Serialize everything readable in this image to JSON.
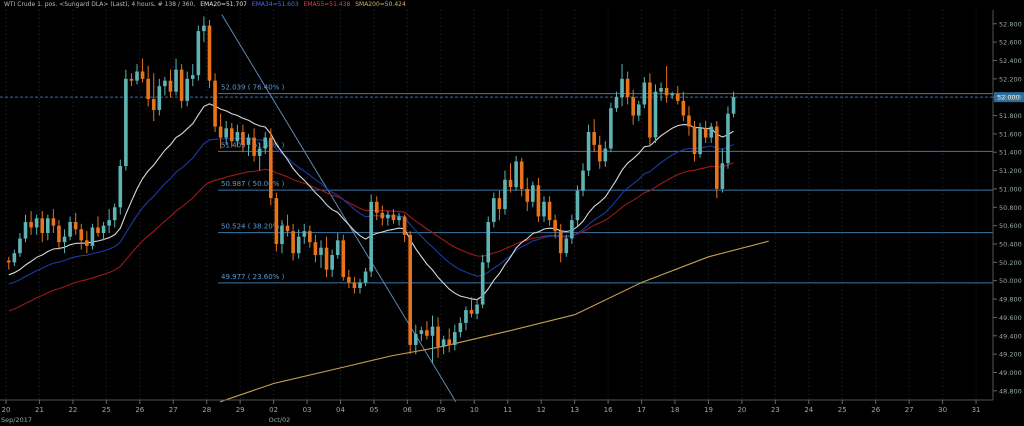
{
  "legend": {
    "symbol": "WTI Crude 1. pos. <Sungard DLA> (Last), 4 hours, # 138 / 360,",
    "ema20": "EMA20=51.707",
    "ema34": "EMA34=51.603",
    "ema55": "EMA55=51.438",
    "sma200": "SMA200=50.424"
  },
  "colors": {
    "background": "#000000",
    "bullish_candle": "#5fb3b3",
    "bearish_candle": "#e8731d",
    "ema20": "#d8d8d8",
    "ema34": "#1a3aa8",
    "ema55": "#a01818",
    "sma200": "#c8a050",
    "fib_line": "#3a78a8",
    "trendline": "#5f88b5",
    "grid": "#222a33",
    "last_price_tag": "#2a6ea0"
  },
  "chart_data": {
    "type": "candlestick",
    "ylim": [
      48.7,
      52.95
    ],
    "yticks": [
      "48.800",
      "49.000",
      "49.200",
      "49.400",
      "49.600",
      "49.800",
      "50.000",
      "50.200",
      "50.400",
      "50.600",
      "50.800",
      "51.000",
      "51.200",
      "51.400",
      "51.600",
      "51.800",
      "52.000",
      "52.200",
      "52.400",
      "52.600",
      "52.800"
    ],
    "ytick_values": [
      48.8,
      49.0,
      49.2,
      49.4,
      49.6,
      49.8,
      50.0,
      50.2,
      50.4,
      50.6,
      50.8,
      51.0,
      51.2,
      51.4,
      51.6,
      51.8,
      52.0,
      52.2,
      52.4,
      52.6,
      52.8
    ],
    "last_price": {
      "label": "52.000",
      "value": 52.0
    },
    "x_labels": [
      "20",
      "21",
      "22",
      "25",
      "26",
      "27",
      "28",
      "29",
      "02",
      "03",
      "04",
      "05",
      "06",
      "09",
      "10",
      "11",
      "12",
      "13",
      "16",
      "17",
      "18",
      "19",
      "20",
      "23",
      "24",
      "25",
      "26",
      "27",
      "30",
      "31"
    ],
    "x_sub_labels": [
      {
        "label": "Sep/2017",
        "day_index": 0
      },
      {
        "label": "Oct/02",
        "day_index": 8
      }
    ],
    "fibonacci_levels": [
      {
        "label": "52.039 ( 76.40% )",
        "value": 52.039
      },
      {
        "label": "51.409 ( 61.80% )",
        "value": 51.409
      },
      {
        "label": "50.987 ( 50.00% )",
        "value": 50.987
      },
      {
        "label": "50.524 ( 38.20% )",
        "value": 50.524
      },
      {
        "label": "49.977 ( 23.60% )",
        "value": 49.977
      }
    ],
    "trendline": {
      "from": {
        "day": 6.45,
        "value": 52.9
      },
      "to": {
        "day": 13.45,
        "value": 48.68
      }
    },
    "candles_per_day": 6,
    "candles": [
      [
        50.22,
        50.26,
        50.12,
        50.2
      ],
      [
        50.2,
        50.34,
        50.16,
        50.3
      ],
      [
        50.3,
        50.52,
        50.26,
        50.46
      ],
      [
        50.46,
        50.72,
        50.42,
        50.64
      ],
      [
        50.64,
        50.76,
        50.5,
        50.58
      ],
      [
        50.58,
        50.72,
        50.5,
        50.68
      ],
      [
        50.68,
        50.76,
        50.42,
        50.52
      ],
      [
        50.52,
        50.72,
        50.44,
        50.68
      ],
      [
        50.68,
        50.78,
        50.52,
        50.6
      ],
      [
        50.6,
        50.66,
        50.34,
        50.42
      ],
      [
        50.42,
        50.56,
        50.3,
        50.48
      ],
      [
        50.48,
        50.7,
        50.44,
        50.64
      ],
      [
        50.64,
        50.74,
        50.5,
        50.56
      ],
      [
        50.56,
        50.62,
        50.34,
        50.44
      ],
      [
        50.44,
        50.54,
        50.3,
        50.38
      ],
      [
        50.38,
        50.62,
        50.34,
        50.58
      ],
      [
        50.58,
        50.7,
        50.48,
        50.52
      ],
      [
        50.52,
        50.64,
        50.44,
        50.6
      ],
      [
        50.6,
        50.78,
        50.52,
        50.66
      ],
      [
        50.66,
        50.84,
        50.58,
        50.8
      ],
      [
        50.8,
        51.32,
        50.72,
        51.25
      ],
      [
        51.25,
        52.3,
        51.2,
        52.2
      ],
      [
        52.2,
        52.26,
        52.12,
        52.18
      ],
      [
        52.18,
        52.36,
        52.14,
        52.28
      ],
      [
        52.28,
        52.42,
        52.16,
        52.2
      ],
      [
        52.2,
        52.34,
        51.9,
        51.98
      ],
      [
        51.98,
        52.26,
        51.74,
        51.86
      ],
      [
        51.86,
        52.2,
        51.8,
        52.12
      ],
      [
        52.12,
        52.22,
        52.02,
        52.18
      ],
      [
        52.18,
        52.3,
        52.0,
        52.06
      ],
      [
        52.06,
        52.42,
        52.02,
        52.3
      ],
      [
        52.3,
        52.36,
        51.88,
        51.96
      ],
      [
        51.96,
        52.28,
        51.9,
        52.2
      ],
      [
        52.2,
        52.36,
        52.12,
        52.24
      ],
      [
        52.24,
        52.78,
        52.18,
        52.72
      ],
      [
        52.72,
        52.88,
        52.6,
        52.78
      ],
      [
        52.78,
        52.84,
        52.1,
        52.18
      ],
      [
        52.18,
        52.26,
        51.62,
        51.68
      ],
      [
        51.68,
        51.82,
        51.44,
        51.56
      ],
      [
        51.56,
        51.74,
        51.48,
        51.66
      ],
      [
        51.66,
        51.72,
        51.46,
        51.52
      ],
      [
        51.52,
        51.7,
        51.46,
        51.62
      ],
      [
        51.62,
        51.7,
        51.4,
        51.48
      ],
      [
        51.48,
        51.6,
        51.36,
        51.56
      ],
      [
        51.56,
        51.66,
        51.3,
        51.36
      ],
      [
        51.36,
        51.5,
        51.2,
        51.44
      ],
      [
        51.44,
        51.62,
        51.38,
        51.56
      ],
      [
        51.56,
        51.66,
        50.82,
        50.9
      ],
      [
        50.9,
        50.96,
        50.32,
        50.4
      ],
      [
        50.4,
        50.66,
        50.3,
        50.6
      ],
      [
        50.6,
        50.72,
        50.48,
        50.54
      ],
      [
        50.54,
        50.62,
        50.22,
        50.3
      ],
      [
        50.3,
        50.56,
        50.24,
        50.48
      ],
      [
        50.48,
        50.62,
        50.4,
        50.54
      ],
      [
        50.54,
        50.6,
        50.36,
        50.42
      ],
      [
        50.42,
        50.5,
        50.2,
        50.28
      ],
      [
        50.28,
        50.44,
        50.14,
        50.36
      ],
      [
        50.36,
        50.48,
        50.04,
        50.12
      ],
      [
        50.12,
        50.34,
        50.04,
        50.28
      ],
      [
        50.28,
        50.52,
        50.24,
        50.44
      ],
      [
        50.44,
        50.5,
        50.0,
        50.04
      ],
      [
        50.04,
        50.12,
        49.92,
        49.98
      ],
      [
        49.98,
        50.04,
        49.86,
        49.92
      ],
      [
        49.92,
        50.02,
        49.86,
        49.98
      ],
      [
        49.98,
        50.14,
        49.94,
        50.1
      ],
      [
        50.1,
        50.94,
        50.04,
        50.86
      ],
      [
        50.86,
        50.92,
        50.66,
        50.74
      ],
      [
        50.74,
        50.82,
        50.6,
        50.68
      ],
      [
        50.68,
        50.76,
        50.6,
        50.72
      ],
      [
        50.72,
        50.78,
        50.62,
        50.66
      ],
      [
        50.66,
        50.74,
        50.6,
        50.7
      ],
      [
        50.7,
        50.72,
        50.42,
        50.5
      ],
      [
        50.5,
        50.54,
        49.2,
        49.3
      ],
      [
        49.3,
        49.52,
        49.2,
        49.42
      ],
      [
        49.42,
        49.5,
        49.34,
        49.46
      ],
      [
        49.46,
        49.56,
        49.36,
        49.4
      ],
      [
        49.4,
        49.62,
        49.1,
        49.5
      ],
      [
        49.5,
        49.6,
        49.16,
        49.28
      ],
      [
        49.28,
        49.4,
        49.2,
        49.36
      ],
      [
        49.36,
        49.48,
        49.22,
        49.3
      ],
      [
        49.3,
        49.52,
        49.24,
        49.44
      ],
      [
        49.44,
        49.6,
        49.38,
        49.54
      ],
      [
        49.54,
        49.72,
        49.46,
        49.68
      ],
      [
        49.68,
        49.82,
        49.6,
        49.64
      ],
      [
        49.64,
        49.8,
        49.58,
        49.74
      ],
      [
        49.74,
        50.28,
        49.7,
        50.2
      ],
      [
        50.2,
        50.7,
        50.14,
        50.64
      ],
      [
        50.64,
        50.96,
        50.58,
        50.9
      ],
      [
        50.9,
        50.98,
        50.66,
        50.78
      ],
      [
        50.78,
        51.2,
        50.72,
        51.1
      ],
      [
        51.1,
        51.28,
        50.96,
        51.02
      ],
      [
        51.02,
        51.36,
        50.98,
        51.3
      ],
      [
        51.3,
        51.34,
        50.92,
        51.0
      ],
      [
        51.0,
        51.12,
        50.76,
        50.86
      ],
      [
        50.86,
        51.08,
        50.8,
        51.04
      ],
      [
        51.04,
        51.12,
        50.64,
        50.7
      ],
      [
        50.7,
        50.92,
        50.64,
        50.86
      ],
      [
        50.86,
        50.92,
        50.6,
        50.66
      ],
      [
        50.66,
        50.72,
        50.46,
        50.54
      ],
      [
        50.54,
        50.62,
        50.2,
        50.3
      ],
      [
        50.3,
        50.5,
        50.26,
        50.46
      ],
      [
        50.46,
        50.72,
        50.4,
        50.66
      ],
      [
        50.66,
        51.04,
        50.6,
        50.98
      ],
      [
        50.98,
        51.28,
        50.92,
        51.2
      ],
      [
        51.2,
        51.7,
        51.14,
        51.62
      ],
      [
        51.62,
        51.76,
        51.4,
        51.48
      ],
      [
        51.48,
        51.58,
        51.22,
        51.3
      ],
      [
        51.3,
        51.52,
        51.24,
        51.44
      ],
      [
        51.44,
        51.94,
        51.4,
        51.88
      ],
      [
        51.88,
        52.06,
        51.84,
        52.0
      ],
      [
        52.0,
        52.36,
        51.9,
        52.2
      ],
      [
        52.2,
        52.28,
        51.92,
        52.0
      ],
      [
        52.0,
        52.08,
        51.7,
        51.8
      ],
      [
        51.8,
        51.96,
        51.74,
        51.92
      ],
      [
        51.92,
        52.22,
        51.88,
        52.16
      ],
      [
        52.16,
        52.26,
        51.48,
        51.56
      ],
      [
        51.56,
        52.14,
        51.5,
        52.06
      ],
      [
        52.06,
        52.16,
        51.96,
        52.1
      ],
      [
        52.1,
        52.34,
        51.94,
        52.02
      ],
      [
        52.02,
        52.06,
        51.98,
        52.04
      ],
      [
        52.04,
        52.12,
        51.92,
        51.96
      ],
      [
        51.96,
        52.06,
        51.74,
        51.8
      ],
      [
        51.8,
        51.9,
        51.58,
        51.68
      ],
      [
        51.68,
        51.74,
        51.3,
        51.38
      ],
      [
        51.38,
        51.72,
        51.34,
        51.66
      ],
      [
        51.66,
        51.74,
        51.5,
        51.56
      ],
      [
        51.56,
        51.72,
        51.5,
        51.68
      ],
      [
        51.68,
        51.74,
        50.9,
        51.0
      ],
      [
        51.0,
        51.44,
        50.96,
        51.28
      ],
      [
        51.28,
        51.9,
        51.22,
        51.82
      ],
      [
        51.82,
        52.06,
        51.78,
        52.0
      ]
    ],
    "sma200": [
      {
        "day": 6.4,
        "value": 48.68
      },
      {
        "day": 8.0,
        "value": 48.88
      },
      {
        "day": 10.0,
        "value": 49.05
      },
      {
        "day": 11.5,
        "value": 49.18
      },
      {
        "day": 13.0,
        "value": 49.28
      },
      {
        "day": 15.0,
        "value": 49.45
      },
      {
        "day": 17.0,
        "value": 49.63
      },
      {
        "day": 19.0,
        "value": 49.98
      },
      {
        "day": 21.0,
        "value": 50.26
      },
      {
        "day": 22.8,
        "value": 50.43
      }
    ]
  }
}
